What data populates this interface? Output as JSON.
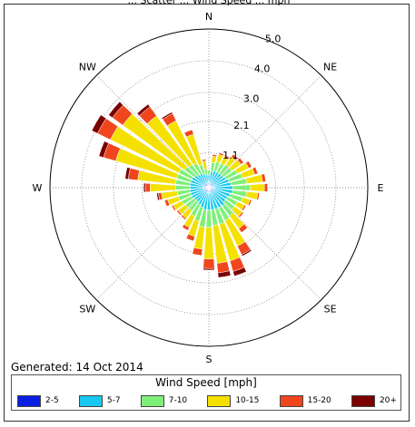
{
  "chart_data": {
    "type": "wind-rose",
    "title": "... Scatter ... Wind Speed ... mph",
    "directions_labels": [
      "N",
      "NE",
      "E",
      "SE",
      "S",
      "SW",
      "W",
      "NW"
    ],
    "radial_ticks": [
      "1.1",
      "2.1",
      "3.0",
      "4.0",
      "5.0"
    ],
    "radial_values": [
      1.1,
      2.1,
      3.0,
      4.0,
      5.0
    ],
    "rmax": 5.0,
    "grid": true,
    "sector_width_deg": 10,
    "legend_title": "Wind Speed [mph]",
    "bins": [
      {
        "label": "2-5",
        "color": "#0a1fe0"
      },
      {
        "label": "5-7",
        "color": "#19c8f0"
      },
      {
        "label": "7-10",
        "color": "#7ef07a"
      },
      {
        "label": "10-15",
        "color": "#f5e100"
      },
      {
        "label": "15-20",
        "color": "#f0461e"
      },
      {
        "label": "20+",
        "color": "#7a0000"
      }
    ],
    "sectors": [
      {
        "dir": 0,
        "values": [
          0.15,
          0.25,
          0.15,
          0.0,
          0.0,
          0.0
        ]
      },
      {
        "dir": 10,
        "values": [
          0.15,
          0.35,
          0.3,
          0.2,
          0.05,
          0.0
        ]
      },
      {
        "dir": 20,
        "values": [
          0.15,
          0.4,
          0.3,
          0.25,
          0.05,
          0.0
        ]
      },
      {
        "dir": 30,
        "values": [
          0.15,
          0.4,
          0.3,
          0.25,
          0.05,
          0.0
        ]
      },
      {
        "dir": 40,
        "values": [
          0.15,
          0.4,
          0.35,
          0.3,
          0.1,
          0.0
        ]
      },
      {
        "dir": 50,
        "values": [
          0.15,
          0.4,
          0.35,
          0.35,
          0.1,
          0.0
        ]
      },
      {
        "dir": 60,
        "values": [
          0.15,
          0.45,
          0.4,
          0.4,
          0.1,
          0.0
        ]
      },
      {
        "dir": 70,
        "values": [
          0.15,
          0.5,
          0.45,
          0.4,
          0.1,
          0.0
        ]
      },
      {
        "dir": 80,
        "values": [
          0.15,
          0.55,
          0.5,
          0.5,
          0.1,
          0.0
        ]
      },
      {
        "dir": 90,
        "values": [
          0.15,
          0.6,
          0.55,
          0.45,
          0.1,
          0.0
        ]
      },
      {
        "dir": 100,
        "values": [
          0.15,
          0.6,
          0.45,
          0.35,
          0.05,
          0.0
        ]
      },
      {
        "dir": 110,
        "values": [
          0.15,
          0.55,
          0.4,
          0.25,
          0.05,
          0.0
        ]
      },
      {
        "dir": 120,
        "values": [
          0.15,
          0.5,
          0.35,
          0.25,
          0.05,
          0.0
        ]
      },
      {
        "dir": 130,
        "values": [
          0.15,
          0.5,
          0.35,
          0.3,
          0.05,
          0.0
        ]
      },
      {
        "dir": 140,
        "values": [
          0.15,
          0.55,
          0.4,
          0.5,
          0.15,
          0.0
        ]
      },
      {
        "dir": 150,
        "values": [
          0.15,
          0.55,
          0.45,
          0.9,
          0.3,
          0.05
        ]
      },
      {
        "dir": 160,
        "values": [
          0.15,
          0.55,
          0.5,
          1.2,
          0.35,
          0.15
        ]
      },
      {
        "dir": 170,
        "values": [
          0.15,
          0.55,
          0.5,
          1.2,
          0.3,
          0.15
        ]
      },
      {
        "dir": 180,
        "values": [
          0.15,
          0.55,
          0.55,
          1.0,
          0.3,
          0.05
        ]
      },
      {
        "dir": 190,
        "values": [
          0.15,
          0.55,
          0.55,
          0.7,
          0.2,
          0.0
        ]
      },
      {
        "dir": 200,
        "values": [
          0.15,
          0.5,
          0.45,
          0.5,
          0.15,
          0.0
        ]
      },
      {
        "dir": 210,
        "values": [
          0.15,
          0.45,
          0.4,
          0.4,
          0.1,
          0.0
        ]
      },
      {
        "dir": 220,
        "values": [
          0.15,
          0.4,
          0.35,
          0.3,
          0.05,
          0.0
        ]
      },
      {
        "dir": 230,
        "values": [
          0.15,
          0.4,
          0.35,
          0.3,
          0.05,
          0.0
        ]
      },
      {
        "dir": 240,
        "values": [
          0.15,
          0.45,
          0.35,
          0.3,
          0.05,
          0.0
        ]
      },
      {
        "dir": 250,
        "values": [
          0.15,
          0.45,
          0.4,
          0.35,
          0.1,
          0.0
        ]
      },
      {
        "dir": 260,
        "values": [
          0.15,
          0.45,
          0.4,
          0.5,
          0.1,
          0.05
        ]
      },
      {
        "dir": 270,
        "values": [
          0.15,
          0.45,
          0.45,
          0.8,
          0.15,
          0.05
        ]
      },
      {
        "dir": 280,
        "values": [
          0.15,
          0.45,
          0.45,
          1.2,
          0.3,
          0.1
        ]
      },
      {
        "dir": 290,
        "values": [
          0.15,
          0.45,
          0.45,
          2.0,
          0.4,
          0.15
        ]
      },
      {
        "dir": 300,
        "values": [
          0.15,
          0.45,
          0.45,
          2.4,
          0.45,
          0.2
        ]
      },
      {
        "dir": 310,
        "values": [
          0.15,
          0.4,
          0.4,
          2.4,
          0.4,
          0.15
        ]
      },
      {
        "dir": 320,
        "values": [
          0.15,
          0.35,
          0.4,
          1.9,
          0.35,
          0.1
        ]
      },
      {
        "dir": 330,
        "values": [
          0.15,
          0.35,
          0.35,
          1.5,
          0.25,
          0.05
        ]
      },
      {
        "dir": 340,
        "values": [
          0.15,
          0.3,
          0.3,
          1.0,
          0.15,
          0.0
        ]
      },
      {
        "dir": 350,
        "values": [
          0.15,
          0.25,
          0.2,
          0.25,
          0.05,
          0.0
        ]
      }
    ]
  },
  "footer": {
    "generated": "Generated: 14 Oct 2014"
  }
}
